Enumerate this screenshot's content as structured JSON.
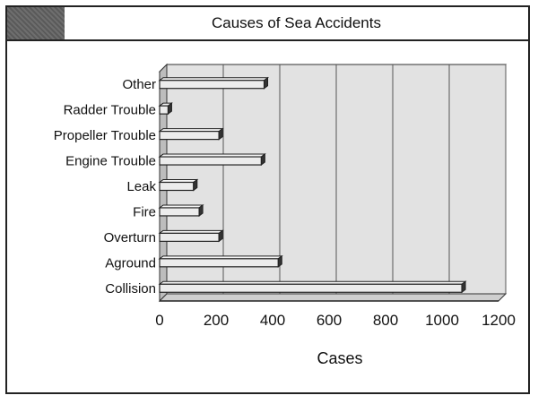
{
  "chart_data": {
    "type": "bar",
    "orientation": "horizontal",
    "title": "Causes of Sea Accidents",
    "xlabel": "Cases",
    "ylabel": "",
    "categories": [
      "Collision",
      "Aground",
      "Overturn",
      "Fire",
      "Leak",
      "Engine Trouble",
      "Propeller Trouble",
      "Radder Trouble",
      "Other"
    ],
    "values": [
      1070,
      420,
      210,
      140,
      120,
      360,
      210,
      30,
      370
    ],
    "xlim": [
      0,
      1200
    ],
    "xticks": [
      "0",
      "200",
      "400",
      "600",
      "800",
      "1000",
      "1200"
    ],
    "grid": "vertical",
    "legend": "none"
  }
}
